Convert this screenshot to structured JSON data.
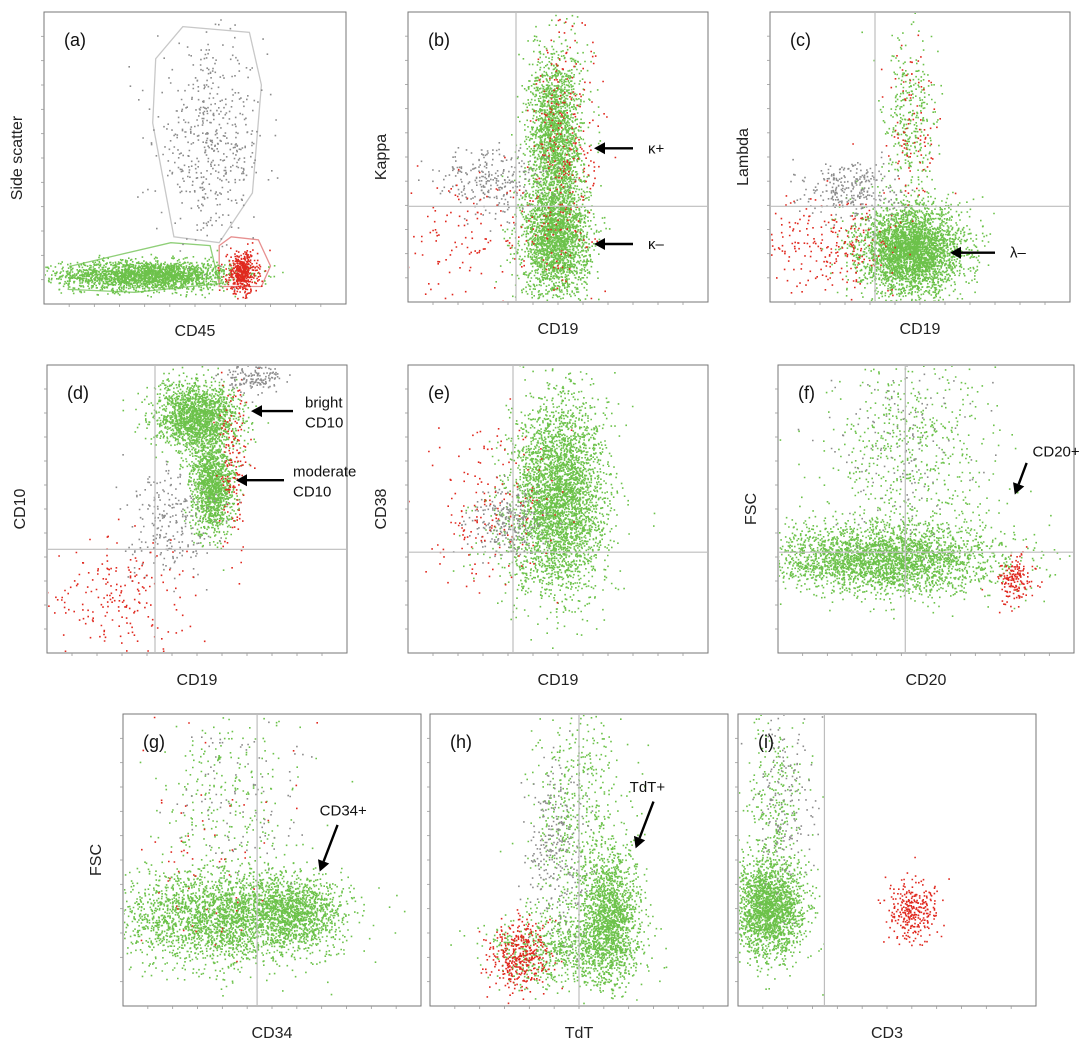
{
  "figure": {
    "colors": {
      "green": "#6cc24a",
      "red": "#e0281e",
      "grey": "#8c8c8c",
      "gate_green": "#8fcf78",
      "gate_red": "#e79090",
      "gate_grey": "#c8c8c8",
      "quadrant_line": "#bdbdbd",
      "frame": "#777777"
    }
  },
  "chart_data": [
    {
      "id": "a",
      "type": "scatter",
      "label": "(a)",
      "xlabel": "CD45",
      "ylabel": "Side scatter",
      "quadrant": null,
      "gates": [
        "grey",
        "green",
        "red"
      ],
      "populations": [
        {
          "color": "green",
          "cx": 0.34,
          "cy": 0.1,
          "sx": 0.14,
          "sy": 0.025,
          "n": 2200
        },
        {
          "color": "red",
          "cx": 0.655,
          "cy": 0.11,
          "sx": 0.025,
          "sy": 0.035,
          "n": 450
        },
        {
          "color": "grey",
          "cx": 0.55,
          "cy": 0.55,
          "sx": 0.09,
          "sy": 0.16,
          "n": 500
        }
      ],
      "annotations": []
    },
    {
      "id": "b",
      "type": "scatter",
      "label": "(b)",
      "xlabel": "CD19",
      "ylabel": "Kappa",
      "quadrant": [
        0.36,
        0.33
      ],
      "populations": [
        {
          "color": "green",
          "cx": 0.49,
          "cy": 0.22,
          "sx": 0.055,
          "sy": 0.1,
          "n": 2200
        },
        {
          "color": "green",
          "cx": 0.49,
          "cy": 0.57,
          "sx": 0.045,
          "sy": 0.15,
          "n": 2000
        },
        {
          "color": "red",
          "cx": 0.53,
          "cy": 0.55,
          "sx": 0.06,
          "sy": 0.22,
          "n": 260
        },
        {
          "color": "grey",
          "cx": 0.28,
          "cy": 0.42,
          "sx": 0.09,
          "sy": 0.06,
          "n": 260
        },
        {
          "color": "red",
          "cx": 0.2,
          "cy": 0.22,
          "sx": 0.16,
          "sy": 0.12,
          "n": 160
        }
      ],
      "annotations": [
        {
          "text": "κ+",
          "tip": [
            0.62,
            0.53
          ],
          "tail": [
            0.75,
            0.53
          ],
          "tx": 0.8,
          "ty": 0.53
        },
        {
          "text": "κ–",
          "tip": [
            0.62,
            0.2
          ],
          "tail": [
            0.75,
            0.2
          ],
          "tx": 0.8,
          "ty": 0.2
        }
      ]
    },
    {
      "id": "c",
      "type": "scatter",
      "label": "(c)",
      "xlabel": "CD19",
      "ylabel": "Lambda",
      "quadrant": [
        0.35,
        0.33
      ],
      "populations": [
        {
          "color": "green",
          "cx": 0.47,
          "cy": 0.18,
          "sx": 0.085,
          "sy": 0.075,
          "n": 3400
        },
        {
          "color": "red",
          "cx": 0.2,
          "cy": 0.2,
          "sx": 0.12,
          "sy": 0.08,
          "n": 240
        },
        {
          "color": "grey",
          "cx": 0.28,
          "cy": 0.39,
          "sx": 0.08,
          "sy": 0.05,
          "n": 280
        },
        {
          "color": "green",
          "cx": 0.46,
          "cy": 0.62,
          "sx": 0.045,
          "sy": 0.15,
          "n": 320
        },
        {
          "color": "red",
          "cx": 0.46,
          "cy": 0.6,
          "sx": 0.05,
          "sy": 0.15,
          "n": 100
        }
      ],
      "annotations": [
        {
          "text": "λ–",
          "tip": [
            0.6,
            0.17
          ],
          "tail": [
            0.75,
            0.17
          ],
          "tx": 0.8,
          "ty": 0.17
        }
      ]
    },
    {
      "id": "d",
      "type": "scatter",
      "label": "(d)",
      "xlabel": "CD19",
      "ylabel": "CD10",
      "quadrant": [
        0.36,
        0.36
      ],
      "populations": [
        {
          "color": "green",
          "cx": 0.5,
          "cy": 0.82,
          "sx": 0.07,
          "sy": 0.06,
          "n": 1800
        },
        {
          "color": "green",
          "cx": 0.55,
          "cy": 0.58,
          "sx": 0.035,
          "sy": 0.08,
          "n": 1300
        },
        {
          "color": "red",
          "cx": 0.62,
          "cy": 0.66,
          "sx": 0.025,
          "sy": 0.14,
          "n": 150
        },
        {
          "color": "grey",
          "cx": 0.4,
          "cy": 0.45,
          "sx": 0.07,
          "sy": 0.09,
          "n": 240
        },
        {
          "color": "grey",
          "cx": 0.68,
          "cy": 0.96,
          "sx": 0.05,
          "sy": 0.03,
          "n": 160
        },
        {
          "color": "red",
          "cx": 0.25,
          "cy": 0.2,
          "sx": 0.13,
          "sy": 0.1,
          "n": 200
        }
      ],
      "annotations": [
        {
          "text": "bright|CD10",
          "tip": [
            0.68,
            0.84
          ],
          "tail": [
            0.82,
            0.84
          ],
          "tx": 0.86,
          "ty": 0.87
        },
        {
          "text": "moderate|CD10",
          "tip": [
            0.63,
            0.6
          ],
          "tail": [
            0.79,
            0.6
          ],
          "tx": 0.82,
          "ty": 0.63
        }
      ]
    },
    {
      "id": "e",
      "type": "scatter",
      "label": "(e)",
      "xlabel": "CD19",
      "ylabel": "CD38",
      "quadrant": [
        0.35,
        0.35
      ],
      "populations": [
        {
          "color": "green",
          "cx": 0.5,
          "cy": 0.55,
          "sx": 0.075,
          "sy": 0.17,
          "n": 3200
        },
        {
          "color": "green",
          "cx": 0.45,
          "cy": 0.4,
          "sx": 0.1,
          "sy": 0.1,
          "n": 400
        },
        {
          "color": "grey",
          "cx": 0.33,
          "cy": 0.46,
          "sx": 0.06,
          "sy": 0.06,
          "n": 240
        },
        {
          "color": "red",
          "cx": 0.27,
          "cy": 0.5,
          "sx": 0.12,
          "sy": 0.13,
          "n": 170
        }
      ],
      "annotations": []
    },
    {
      "id": "f",
      "type": "scatter",
      "label": "(f)",
      "xlabel": "CD20",
      "ylabel": "FSC",
      "quadrant": [
        0.43,
        0.35
      ],
      "populations": [
        {
          "color": "green",
          "cx": 0.35,
          "cy": 0.33,
          "sx": 0.2,
          "sy": 0.06,
          "n": 3000
        },
        {
          "color": "green",
          "cx": 0.45,
          "cy": 0.72,
          "sx": 0.13,
          "sy": 0.2,
          "n": 600
        },
        {
          "color": "red",
          "cx": 0.8,
          "cy": 0.26,
          "sx": 0.03,
          "sy": 0.04,
          "n": 160
        },
        {
          "color": "grey",
          "cx": 0.42,
          "cy": 0.7,
          "sx": 0.12,
          "sy": 0.2,
          "n": 160
        }
      ],
      "annotations": [
        {
          "text": "CD20+",
          "tip": [
            0.8,
            0.55
          ],
          "tail": [
            0.84,
            0.66
          ],
          "tx": 0.86,
          "ty": 0.7
        }
      ]
    },
    {
      "id": "g",
      "type": "scatter",
      "label": "(g)",
      "xlabel": "CD34",
      "ylabel": "FSC",
      "quadrant": [
        0.45,
        null
      ],
      "populations": [
        {
          "color": "green",
          "cx": 0.33,
          "cy": 0.3,
          "sx": 0.18,
          "sy": 0.08,
          "n": 2600
        },
        {
          "color": "green",
          "cx": 0.58,
          "cy": 0.33,
          "sx": 0.08,
          "sy": 0.06,
          "n": 1000
        },
        {
          "color": "green",
          "cx": 0.35,
          "cy": 0.7,
          "sx": 0.13,
          "sy": 0.2,
          "n": 300
        },
        {
          "color": "grey",
          "cx": 0.4,
          "cy": 0.75,
          "sx": 0.12,
          "sy": 0.15,
          "n": 100
        },
        {
          "color": "red",
          "cx": 0.3,
          "cy": 0.45,
          "sx": 0.15,
          "sy": 0.25,
          "n": 70
        }
      ],
      "annotations": [
        {
          "text": "CD34+",
          "tip": [
            0.66,
            0.46
          ],
          "tail": [
            0.72,
            0.62
          ],
          "tx": 0.66,
          "ty": 0.67
        }
      ]
    },
    {
      "id": "h",
      "type": "scatter",
      "label": "(h)",
      "xlabel": "TdT",
      "ylabel": "",
      "quadrant": [
        0.5,
        null
      ],
      "populations": [
        {
          "color": "green",
          "cx": 0.6,
          "cy": 0.3,
          "sx": 0.05,
          "sy": 0.11,
          "n": 1500
        },
        {
          "color": "green",
          "cx": 0.45,
          "cy": 0.2,
          "sx": 0.12,
          "sy": 0.06,
          "n": 800
        },
        {
          "color": "green",
          "cx": 0.5,
          "cy": 0.65,
          "sx": 0.08,
          "sy": 0.2,
          "n": 600
        },
        {
          "color": "red",
          "cx": 0.3,
          "cy": 0.18,
          "sx": 0.05,
          "sy": 0.06,
          "n": 380
        },
        {
          "color": "grey",
          "cx": 0.42,
          "cy": 0.55,
          "sx": 0.05,
          "sy": 0.14,
          "n": 260
        }
      ],
      "annotations": [
        {
          "text": "TdT+",
          "tip": [
            0.69,
            0.54
          ],
          "tail": [
            0.75,
            0.7
          ],
          "tx": 0.67,
          "ty": 0.75
        }
      ]
    },
    {
      "id": "i",
      "type": "scatter",
      "label": "(i)",
      "xlabel": "CD3",
      "ylabel": "",
      "quadrant": [
        0.29,
        null
      ],
      "populations": [
        {
          "color": "green",
          "cx": 0.1,
          "cy": 0.33,
          "sx": 0.06,
          "sy": 0.08,
          "n": 2000
        },
        {
          "color": "green",
          "cx": 0.12,
          "cy": 0.65,
          "sx": 0.05,
          "sy": 0.18,
          "n": 300
        },
        {
          "color": "red",
          "cx": 0.58,
          "cy": 0.33,
          "sx": 0.04,
          "sy": 0.05,
          "n": 300
        },
        {
          "color": "grey",
          "cx": 0.16,
          "cy": 0.7,
          "sx": 0.05,
          "sy": 0.15,
          "n": 160
        }
      ],
      "annotations": []
    }
  ]
}
